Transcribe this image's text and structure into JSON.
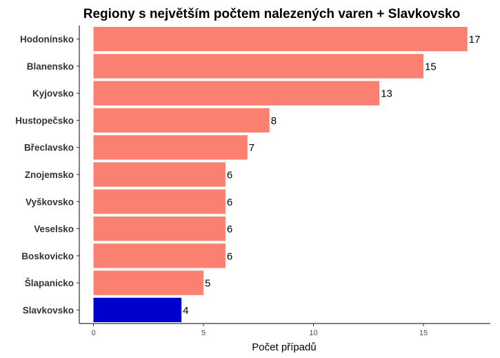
{
  "chart_data": {
    "type": "bar",
    "orientation": "horizontal",
    "title": "Regiony s největším počtem nalezených varen + Slavkovsko",
    "xlabel": "Počet případů",
    "ylabel": "",
    "xlim": [
      0,
      17.85
    ],
    "x_ticks": [
      0,
      5,
      10,
      15
    ],
    "grid": false,
    "legend": "none",
    "categories": [
      "Hodonínsko",
      "Blanensko",
      "Kyjovsko",
      "Hustopečsko",
      "Břeclavsko",
      "Znojemsko",
      "Vyškovsko",
      "Veselsko",
      "Boskovicko",
      "Šlapanicko",
      "Slavkovsko"
    ],
    "values": [
      17,
      15,
      13,
      8,
      7,
      6,
      6,
      6,
      6,
      5,
      4
    ],
    "bar_colors": [
      "#FA8072",
      "#FA8072",
      "#FA8072",
      "#FA8072",
      "#FA8072",
      "#FA8072",
      "#FA8072",
      "#FA8072",
      "#FA8072",
      "#FA8072",
      "#0000CD"
    ]
  }
}
